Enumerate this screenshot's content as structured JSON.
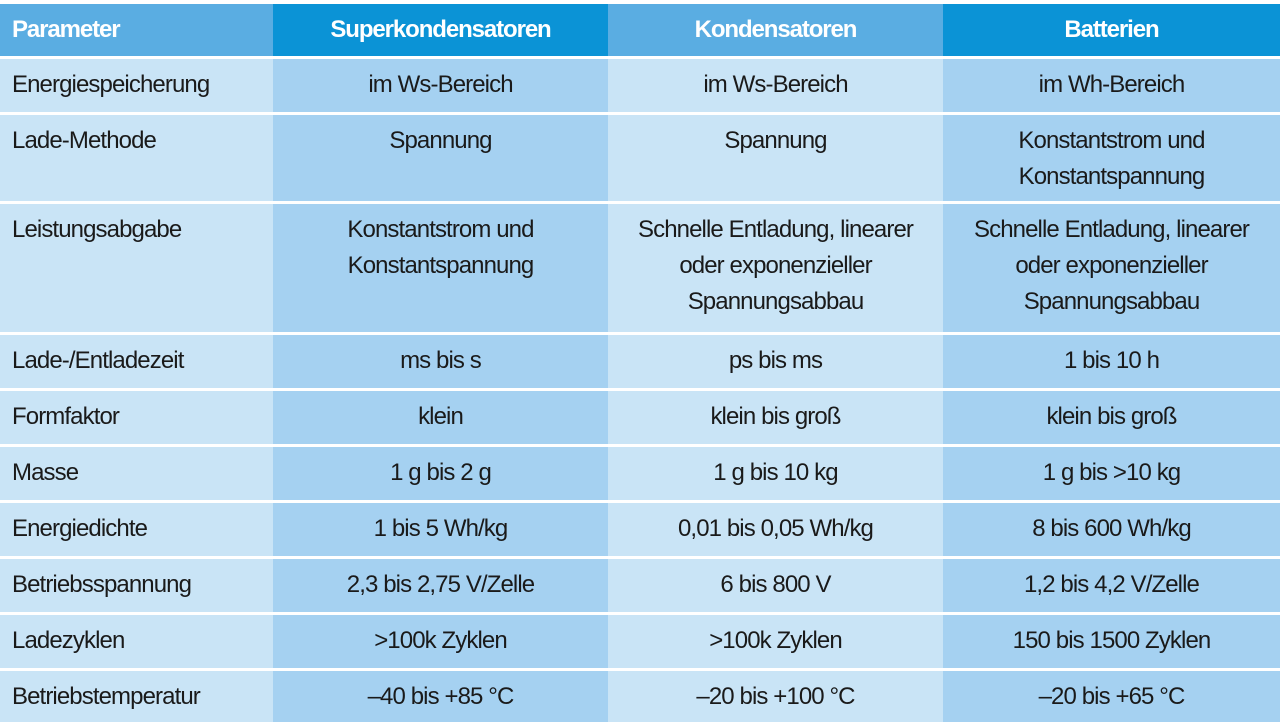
{
  "headers": [
    "Parameter",
    "Superkondensatoren",
    "Kondensatoren",
    "Batterien"
  ],
  "rows": [
    {
      "param": "Energiespeicherung",
      "values": [
        [
          "im Ws-Bereich"
        ],
        [
          "im Ws-Bereich"
        ],
        [
          "im Wh-Bereich"
        ]
      ]
    },
    {
      "param": "Lade-Methode",
      "values": [
        [
          "Spannung"
        ],
        [
          "Spannung"
        ],
        [
          "Konstantstrom und",
          "Konstantspannung"
        ]
      ]
    },
    {
      "param": "Leistungsabgabe",
      "values": [
        [
          "Konstantstrom und",
          "Konstantspannung"
        ],
        [
          "Schnelle Entladung, linearer",
          "oder exponenzieller",
          "Spannungsabbau"
        ],
        [
          "Schnelle Entladung, linearer",
          "oder exponenzieller",
          "Spannungsabbau"
        ]
      ]
    },
    {
      "param": "Lade-/Entladezeit",
      "values": [
        [
          "ms bis s"
        ],
        [
          "ps bis ms"
        ],
        [
          "1 bis 10 h"
        ]
      ]
    },
    {
      "param": "Formfaktor",
      "values": [
        [
          "klein"
        ],
        [
          "klein bis groß"
        ],
        [
          "klein bis groß"
        ]
      ]
    },
    {
      "param": "Masse",
      "values": [
        [
          "1 g bis 2 g"
        ],
        [
          "1 g bis 10 kg"
        ],
        [
          "1 g bis >10 kg"
        ]
      ]
    },
    {
      "param": "Energiedichte",
      "values": [
        [
          "1 bis 5 Wh/kg"
        ],
        [
          "0,01 bis 0,05 Wh/kg"
        ],
        [
          "8 bis 600 Wh/kg"
        ]
      ]
    },
    {
      "param": "Betriebsspannung",
      "values": [
        [
          "2,3 bis 2,75 V/Zelle"
        ],
        [
          "6 bis 800 V"
        ],
        [
          "1,2 bis 4,2 V/Zelle"
        ]
      ]
    },
    {
      "param": "Ladezyklen",
      "values": [
        [
          ">100k Zyklen"
        ],
        [
          ">100k Zyklen"
        ],
        [
          "150 bis 1500 Zyklen"
        ]
      ]
    },
    {
      "param": "Betriebstemperatur",
      "values": [
        [
          "–40 bis +85 °C"
        ],
        [
          "–20 bis +100 °C"
        ],
        [
          "–20 bis +65 °C"
        ]
      ]
    }
  ]
}
